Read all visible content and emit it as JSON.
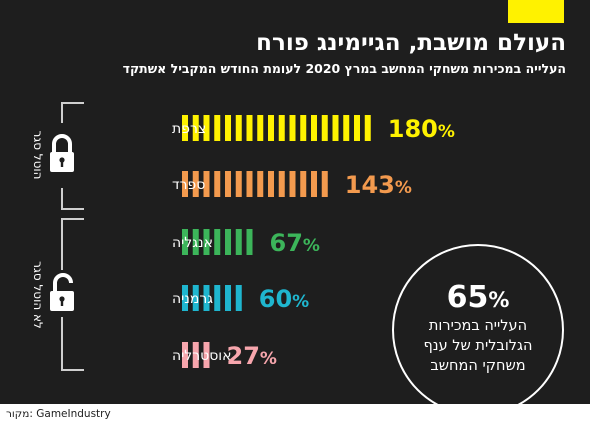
{
  "title": "העולם מושבת, הגיימינג פורח",
  "subtitle": "העלייה במכירות משחקי המחשב במרץ 2020 לעומת החודש המקביל אשתקד",
  "source": "מקור: GameIndustry",
  "colors": {
    "background": "#1e1e1e",
    "accent_tag": "#fff200",
    "france": "#fff200",
    "spain": "#f39a4e",
    "england": "#3cb55a",
    "germany": "#1fb6cf",
    "australia": "#f7a6ad",
    "text": "#ffffff"
  },
  "groups": [
    {
      "label": "הוטל סגר",
      "icon": "closed-padlock-icon"
    },
    {
      "label": "לא הוטל סגר",
      "icon": "open-padlock-icon"
    }
  ],
  "callout": {
    "value": "65",
    "unit": "%",
    "lines": [
      "העלייה במכירות",
      "הגלובלית של ענף",
      "משחקי המחשב"
    ]
  },
  "chart_data": {
    "type": "bar",
    "orientation": "horizontal",
    "unit": "%",
    "categories": [
      "צרפת",
      "ספרד",
      "אנגליה",
      "גרמניה",
      "אוסטרליה"
    ],
    "values": [
      180,
      143,
      67,
      60,
      27
    ],
    "value_labels": [
      "180",
      "143",
      "67",
      "60",
      "27"
    ],
    "colors": [
      "#fff200",
      "#f39a4e",
      "#3cb55a",
      "#1fb6cf",
      "#f7a6ad"
    ],
    "group_of_category": [
      0,
      0,
      1,
      1,
      1
    ],
    "grid": false,
    "legend": "none"
  }
}
